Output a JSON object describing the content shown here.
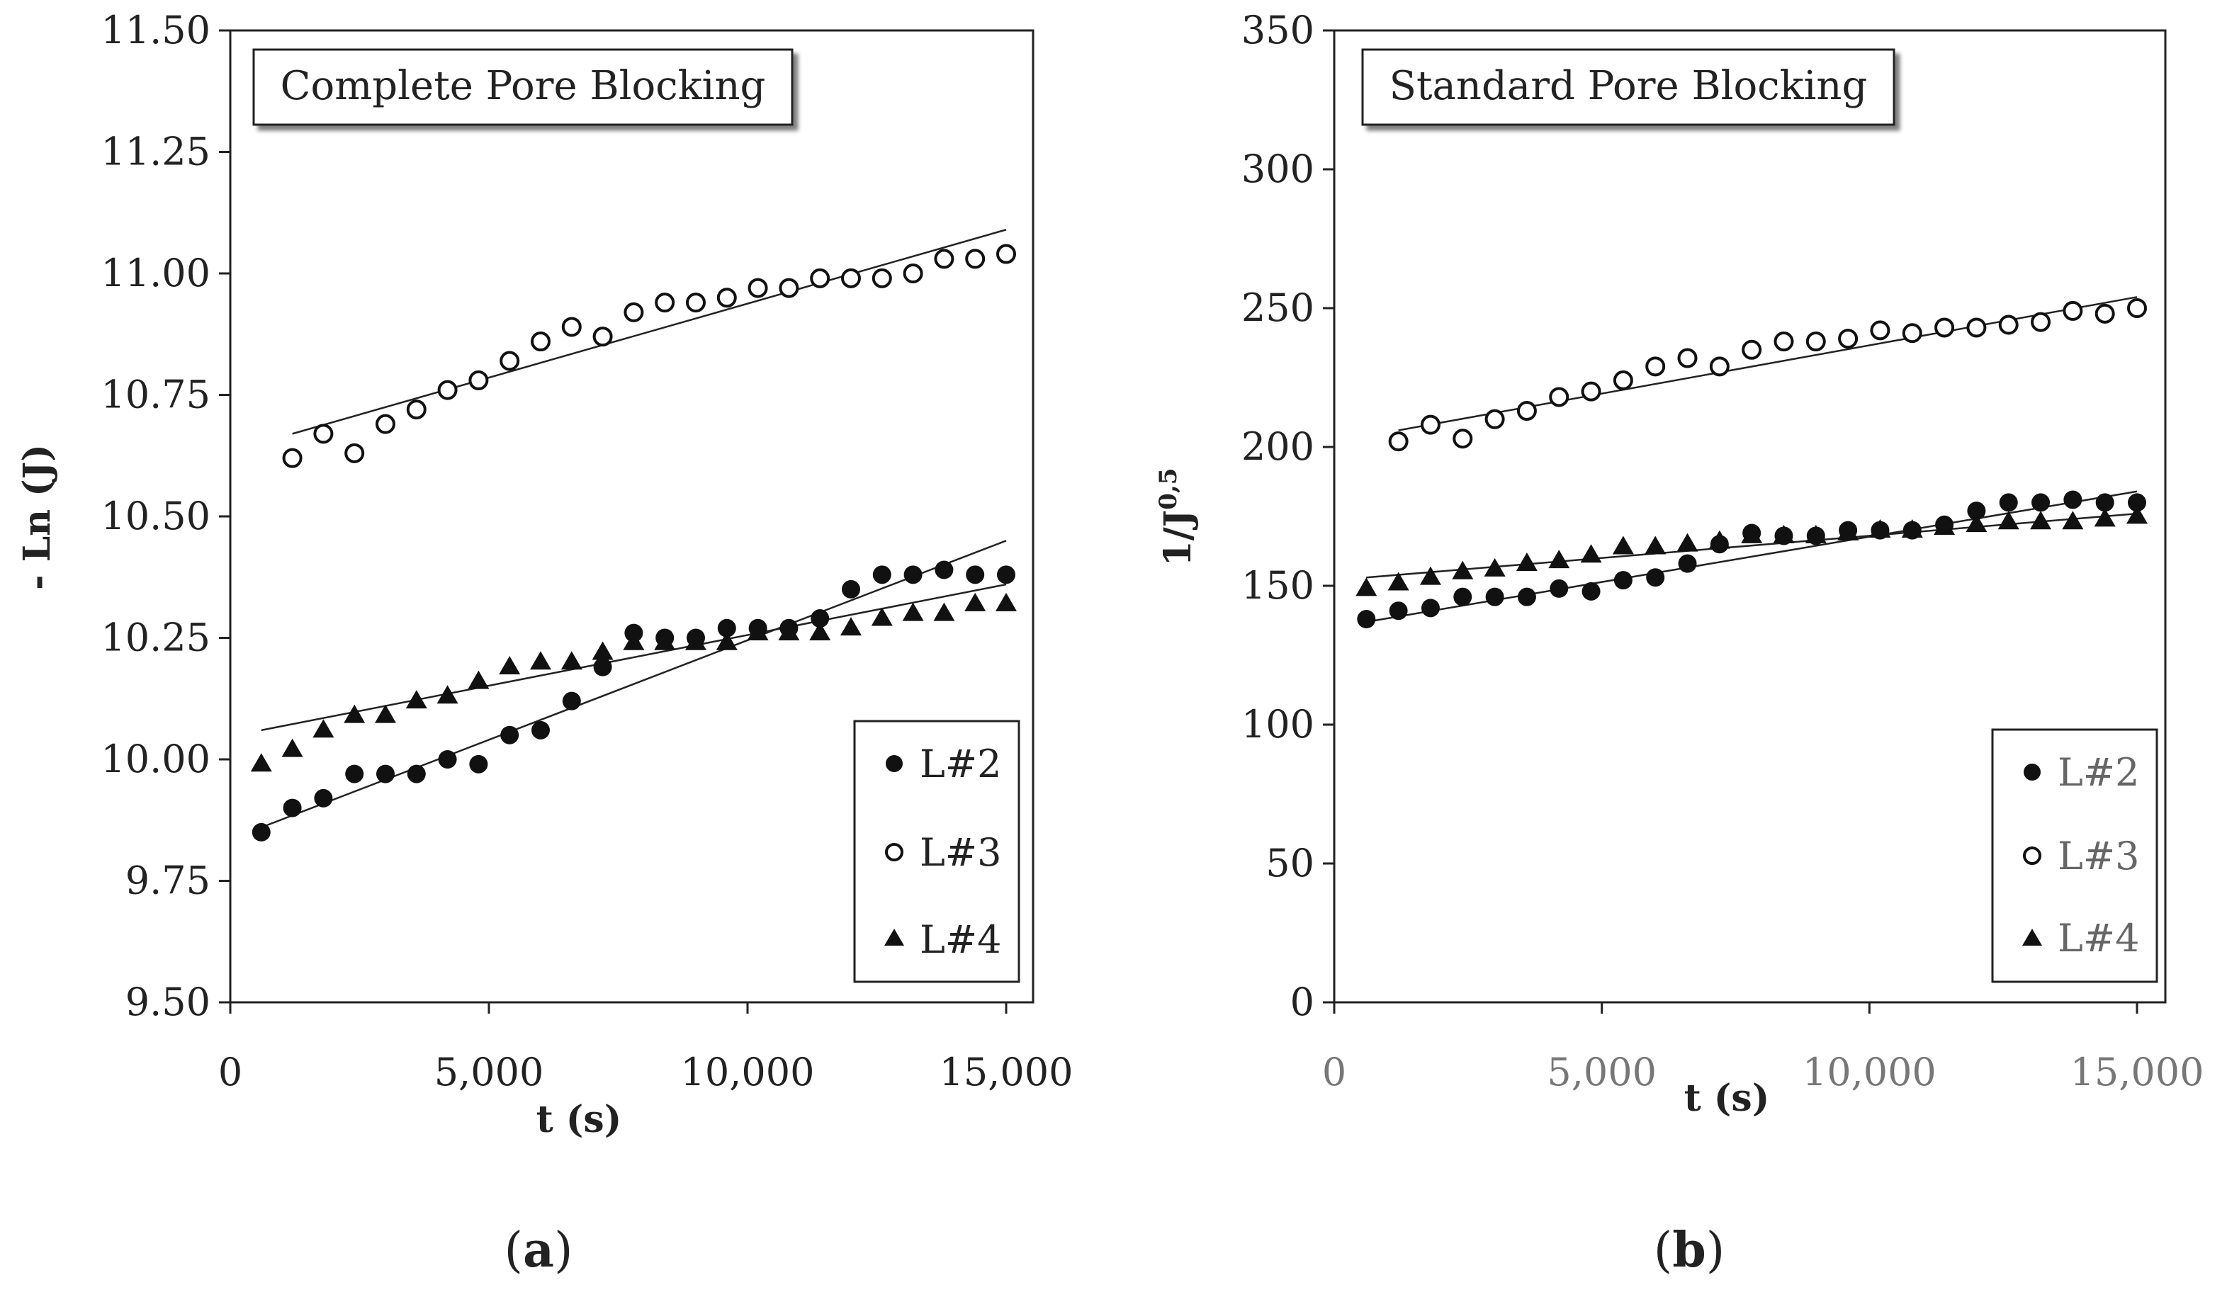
{
  "chart_data": [
    {
      "type": "scatter",
      "panel_label": "a",
      "title": "Complete Pore Blocking",
      "xlabel": "t (s)",
      "ylabel": "- Ln (J)",
      "xlim": [
        0,
        15000
      ],
      "ylim": [
        9.5,
        11.5
      ],
      "x_ticks": [
        "0",
        "5,000",
        "10,000",
        "15,000"
      ],
      "y_ticks": [
        "9.50",
        "9.75",
        "10.00",
        "10.25",
        "10.50",
        "10.75",
        "11.00",
        "11.25",
        "11.50"
      ],
      "legend_position": "bottom-right",
      "series": [
        {
          "name": "L#2",
          "marker": "filled-circle",
          "x": [
            600,
            1200,
            1800,
            2400,
            3000,
            3600,
            4200,
            4800,
            5400,
            6000,
            6600,
            7200,
            7800,
            8400,
            9000,
            9600,
            10200,
            10800,
            11400,
            12000,
            12600,
            13200,
            13800,
            14400,
            15000
          ],
          "y": [
            9.85,
            9.9,
            9.92,
            9.97,
            9.97,
            9.97,
            10.0,
            9.99,
            10.05,
            10.06,
            10.12,
            10.19,
            10.26,
            10.25,
            10.25,
            10.27,
            10.27,
            10.27,
            10.29,
            10.35,
            10.38,
            10.38,
            10.39,
            10.38,
            10.38
          ],
          "fit": {
            "x": [
              600,
              15000
            ],
            "y": [
              9.86,
              10.45
            ]
          }
        },
        {
          "name": "L#3",
          "marker": "open-circle",
          "x": [
            1200,
            1800,
            2400,
            3000,
            3600,
            4200,
            4800,
            5400,
            6000,
            6600,
            7200,
            7800,
            8400,
            9000,
            9600,
            10200,
            10800,
            11400,
            12000,
            12600,
            13200,
            13800,
            14400,
            15000
          ],
          "y": [
            10.62,
            10.67,
            10.63,
            10.69,
            10.72,
            10.76,
            10.78,
            10.82,
            10.86,
            10.89,
            10.87,
            10.92,
            10.94,
            10.94,
            10.95,
            10.97,
            10.97,
            10.99,
            10.99,
            10.99,
            11.0,
            11.03,
            11.03,
            11.04
          ],
          "fit": {
            "x": [
              1200,
              15000
            ],
            "y": [
              10.67,
              11.09
            ]
          }
        },
        {
          "name": "L#4",
          "marker": "filled-triangle",
          "x": [
            600,
            1200,
            1800,
            2400,
            3000,
            3600,
            4200,
            4800,
            5400,
            6000,
            6600,
            7200,
            7800,
            8400,
            9000,
            9600,
            10200,
            10800,
            11400,
            12000,
            12600,
            13200,
            13800,
            14400,
            15000
          ],
          "y": [
            9.99,
            10.02,
            10.06,
            10.09,
            10.09,
            10.12,
            10.13,
            10.16,
            10.19,
            10.2,
            10.2,
            10.22,
            10.24,
            10.24,
            10.24,
            10.24,
            10.26,
            10.26,
            10.26,
            10.27,
            10.29,
            10.3,
            10.3,
            10.32,
            10.32
          ],
          "fit": {
            "x": [
              600,
              15000
            ],
            "y": [
              10.06,
              10.36
            ]
          }
        }
      ]
    },
    {
      "type": "scatter",
      "panel_label": "b",
      "title": "Standard Pore Blocking",
      "xlabel": "t (s)",
      "ylabel": "1/J",
      "ylabel_superscript": "0,5",
      "xlim": [
        0,
        15000
      ],
      "ylim": [
        0,
        350
      ],
      "x_ticks": [
        "0",
        "5,000",
        "10,000",
        "15,000"
      ],
      "y_ticks": [
        "0",
        "50",
        "100",
        "150",
        "200",
        "250",
        "300",
        "350"
      ],
      "legend_position": "bottom-right",
      "series": [
        {
          "name": "L#2",
          "marker": "filled-circle",
          "x": [
            600,
            1200,
            1800,
            2400,
            3000,
            3600,
            4200,
            4800,
            5400,
            6000,
            6600,
            7200,
            7800,
            8400,
            9000,
            9600,
            10200,
            10800,
            11400,
            12000,
            12600,
            13200,
            13800,
            14400,
            15000
          ],
          "y": [
            138,
            141,
            142,
            146,
            146,
            146,
            149,
            148,
            152,
            153,
            158,
            165,
            169,
            168,
            168,
            170,
            170,
            170,
            172,
            177,
            180,
            180,
            181,
            180,
            180
          ],
          "fit": {
            "x": [
              600,
              15000
            ],
            "y": [
              137,
              184
            ]
          }
        },
        {
          "name": "L#3",
          "marker": "open-circle",
          "x": [
            1200,
            1800,
            2400,
            3000,
            3600,
            4200,
            4800,
            5400,
            6000,
            6600,
            7200,
            7800,
            8400,
            9000,
            9600,
            10200,
            10800,
            11400,
            12000,
            12600,
            13200,
            13800,
            14400,
            15000
          ],
          "y": [
            202,
            208,
            203,
            210,
            213,
            218,
            220,
            224,
            229,
            232,
            229,
            235,
            238,
            238,
            239,
            242,
            241,
            243,
            243,
            244,
            245,
            249,
            248,
            250
          ],
          "fit": {
            "x": [
              1200,
              15000
            ],
            "y": [
              206,
              254
            ]
          }
        },
        {
          "name": "L#4",
          "marker": "filled-triangle",
          "x": [
            600,
            1200,
            1800,
            2400,
            3000,
            3600,
            4200,
            4800,
            5400,
            6000,
            6600,
            7200,
            7800,
            8400,
            9000,
            9600,
            10200,
            10800,
            11400,
            12000,
            12600,
            13200,
            13800,
            14400,
            15000
          ],
          "y": [
            149,
            151,
            153,
            155,
            156,
            158,
            159,
            161,
            164,
            164,
            165,
            166,
            168,
            168,
            168,
            169,
            170,
            170,
            171,
            172,
            173,
            173,
            173,
            174,
            175
          ],
          "fit": {
            "x": [
              600,
              15000
            ],
            "y": [
              153,
              176
            ]
          }
        }
      ]
    }
  ]
}
